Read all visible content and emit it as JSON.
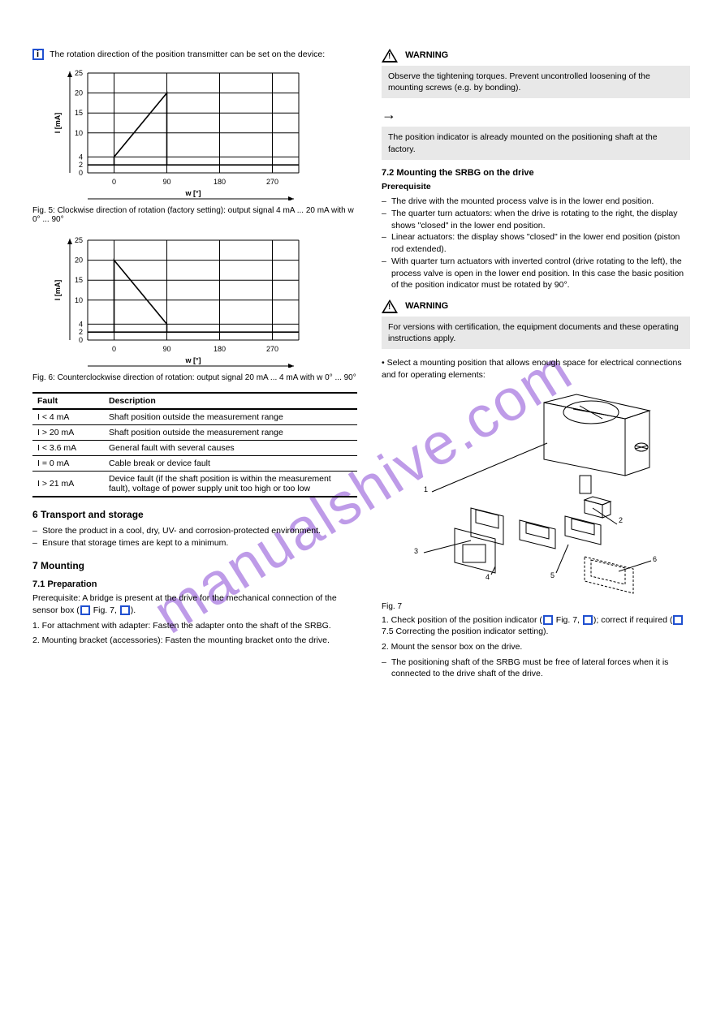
{
  "watermark": "manualshive.com",
  "left": {
    "info_lead": "The rotation direction of the position transmitter can be set on the device:",
    "chart1": {
      "type": "line",
      "title_caption": "Fig. 5: Clockwise direction of rotation (factory setting): output signal 4 mA ... 20 mA with w 0° ... 90°",
      "x_axis_label": "w [°]",
      "y_axis_label": "I [mA]",
      "xlim": [
        -45,
        315
      ],
      "ylim": [
        0,
        25
      ],
      "xticks": [
        0,
        90,
        180,
        270
      ],
      "yticks": [
        0,
        2,
        4,
        10,
        15,
        20,
        25
      ],
      "series": {
        "x": [
          0,
          90
        ],
        "y": [
          4,
          20
        ]
      },
      "baseline_y": 2,
      "line_color": "#000000",
      "grid_color": "#000000",
      "line_width": 1.6,
      "background_color": "#ffffff",
      "font_size": 9
    },
    "chart2": {
      "type": "line",
      "title_caption": "Fig. 6: Counterclockwise direction of rotation: output signal 20 mA ... 4 mA with w 0° ... 90°",
      "x_axis_label": "w [°]",
      "y_axis_label": "I [mA]",
      "xlim": [
        -45,
        315
      ],
      "ylim": [
        0,
        25
      ],
      "xticks": [
        0,
        90,
        180,
        270
      ],
      "yticks": [
        0,
        2,
        4,
        10,
        15,
        20,
        25
      ],
      "series": {
        "x": [
          0,
          90
        ],
        "y": [
          20,
          4
        ]
      },
      "baseline_y": 2,
      "line_color": "#000000",
      "grid_color": "#000000",
      "line_width": 1.6,
      "background_color": "#ffffff",
      "font_size": 9
    },
    "table": {
      "columns": [
        "Fault",
        "Description"
      ],
      "rows": [
        [
          "I < 4 mA",
          "Shaft position outside the measurement range"
        ],
        [
          "I > 20 mA",
          "Shaft position outside the measurement range"
        ],
        [
          "I < 3.6 mA",
          "General fault with several causes"
        ],
        [
          "I = 0 mA",
          "Cable break or device fault"
        ],
        [
          "I > 21 mA",
          "Device fault (if the shaft position is within the measurement fault), voltage of power supply unit too high or too low"
        ]
      ]
    },
    "section6_title": "6   Transport and storage",
    "section6_bullets": [
      "Store the product in a cool, dry, UV- and corrosion-protected environment.",
      "Ensure that storage times are kept to a minimum."
    ],
    "section7_title": "7   Mounting",
    "section7_1_title": "7.1   Preparation",
    "section7_1_text": "Prerequisite: A bridge is present at the drive for the mechanical connection of the sensor box (",
    "section7_1_text_tail": " Fig. 7, ",
    "section7_1_text_tail2": ").",
    "section7_1_steps": [
      "1. For attachment with adapter: Fasten the adapter onto the shaft of the SRBG.",
      "2. Mounting bracket (accessories): Fasten the mounting bracket onto the drive."
    ],
    "callouts": {
      "c1": "1",
      "c6": "6"
    }
  },
  "right": {
    "warning_label": "WARNING",
    "warning_note": "Observe the tightening torques. Prevent uncontrolled loosening of the mounting screws (e.g. by bonding).",
    "arrow_note": "The position indicator is already mounted on the positioning shaft at the factory.",
    "section7_2_title": "7.2   Mounting the SRBG on the drive",
    "prereq_label": "Prerequisite",
    "prereq_bullets": [
      "The drive with the mounted process valve is in the lower end position.",
      "The quarter turn actuators: when the drive is rotating to the right, the display shows \"closed\" in the lower end position.",
      "Linear actuators: the display shows \"closed\" in the lower end position (piston rod extended).",
      "With quarter turn actuators with inverted control (drive rotating to the left), the process valve is open in the lower end position. In this case the basic position of the position indicator must be rotated by 90°."
    ],
    "warn2_label": "WARNING",
    "warn2_note": "For versions with certification, the equipment documents and these operating instructions apply.",
    "mounting_text": "• Select a mounting position that allows enough space for electrical connections and for operating elements:",
    "fig7": {
      "caption": "Fig. 7",
      "callouts": {
        "c1": "1",
        "c2": "2",
        "c3": "3",
        "c4": "4",
        "c5": "5",
        "c6": "6"
      }
    },
    "step1": "1. Check position of the position indicator (",
    "step1_tail": " Fig. 7, ",
    "step1_tail2": "); correct if required (",
    "step1_tail3": " 7.5 Correcting the position indicator setting).",
    "step2": "2. Mount the sensor box on the drive.",
    "step2_bullets": [
      "The positioning shaft of the SRBG must be free of lateral forces when it is connected to the drive shaft of the drive."
    ]
  }
}
